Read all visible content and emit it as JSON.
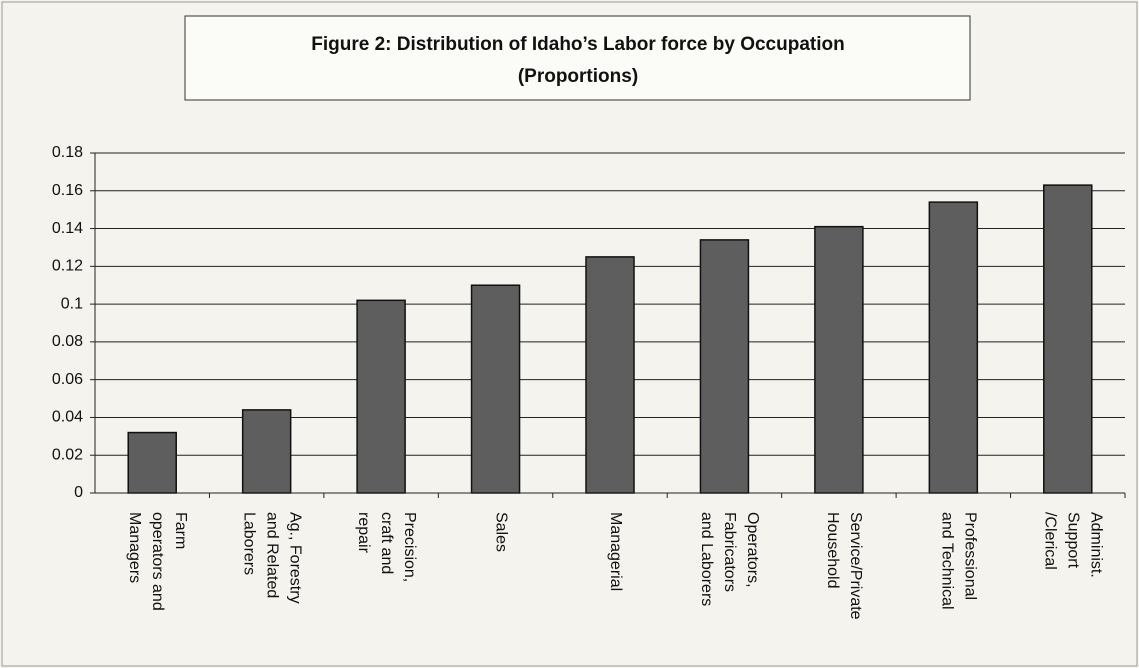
{
  "chart_data": {
    "type": "bar",
    "title": "Figure 2: Distribution of Idaho’s Labor force by Occupation",
    "subtitle": "(Proportions)",
    "categories": [
      [
        "Farm",
        "operators and",
        "Managers"
      ],
      [
        "Ag., Forestry",
        "and Related",
        "Laborers"
      ],
      [
        "Precision,",
        "craft and",
        "repair"
      ],
      [
        "Sales"
      ],
      [
        "Managerial"
      ],
      [
        "Operators,",
        "Fabricators",
        "and Laborers"
      ],
      [
        "Service/Private",
        "Household"
      ],
      [
        "Professional",
        "and Technical"
      ],
      [
        "Administ.",
        "Support",
        "/Clerical"
      ]
    ],
    "values": [
      0.032,
      0.044,
      0.102,
      0.11,
      0.125,
      0.134,
      0.141,
      0.154,
      0.163
    ],
    "color": "#5e5e5e",
    "ylim": [
      0,
      0.18
    ],
    "yticks": [
      0,
      0.02,
      0.04,
      0.06,
      0.08,
      0.1,
      0.12,
      0.14,
      0.16,
      0.18
    ],
    "grid": true
  }
}
